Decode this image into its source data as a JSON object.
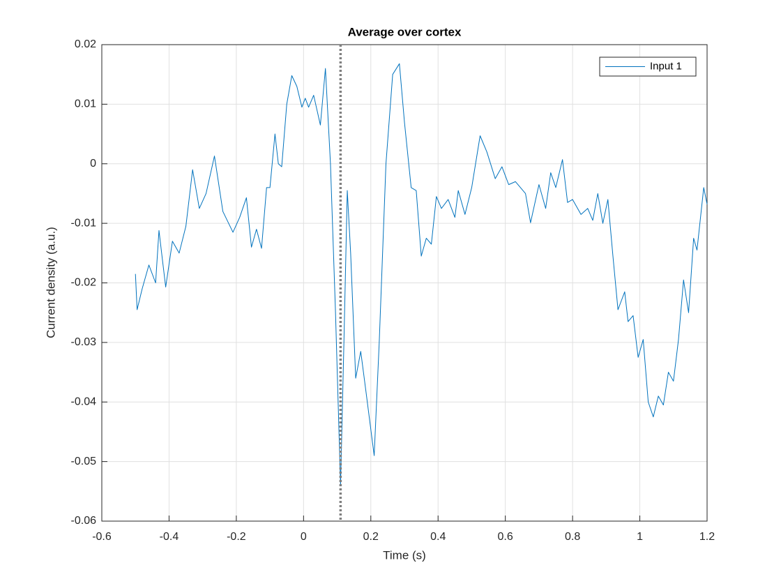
{
  "chart_data": {
    "type": "line",
    "title": "Average over cortex",
    "xlabel": "Time (s)",
    "ylabel": "Current density (a.u.)",
    "x": [
      -0.5,
      -0.495,
      -0.48,
      -0.46,
      -0.44,
      -0.43,
      -0.42,
      -0.41,
      -0.39,
      -0.37,
      -0.35,
      -0.33,
      -0.31,
      -0.29,
      -0.265,
      -0.24,
      -0.21,
      -0.19,
      -0.17,
      -0.155,
      -0.14,
      -0.125,
      -0.11,
      -0.1,
      -0.085,
      -0.075,
      -0.065,
      -0.05,
      -0.035,
      -0.02,
      -0.005,
      0.005,
      0.015,
      0.03,
      0.05,
      0.065,
      0.08,
      0.095,
      0.11,
      0.12,
      0.13,
      0.14,
      0.155,
      0.17,
      0.185,
      0.21,
      0.225,
      0.245,
      0.265,
      0.285,
      0.3,
      0.32,
      0.335,
      0.35,
      0.365,
      0.38,
      0.395,
      0.41,
      0.43,
      0.45,
      0.46,
      0.48,
      0.5,
      0.525,
      0.545,
      0.57,
      0.59,
      0.61,
      0.63,
      0.66,
      0.675,
      0.7,
      0.72,
      0.735,
      0.75,
      0.77,
      0.785,
      0.8,
      0.825,
      0.845,
      0.86,
      0.875,
      0.89,
      0.905,
      0.92,
      0.935,
      0.955,
      0.965,
      0.98,
      0.995,
      1.01,
      1.025,
      1.04,
      1.055,
      1.07,
      1.085,
      1.1,
      1.115,
      1.13,
      1.145,
      1.16,
      1.17,
      1.19,
      1.2
    ],
    "series": [
      {
        "name": "Input 1",
        "color": "#0072bd",
        "values": [
          -0.0185,
          -0.0245,
          -0.021,
          -0.017,
          -0.02,
          -0.0112,
          -0.016,
          -0.0207,
          -0.013,
          -0.015,
          -0.0105,
          -0.001,
          -0.0075,
          -0.005,
          0.0013,
          -0.008,
          -0.0115,
          -0.009,
          -0.0057,
          -0.014,
          -0.011,
          -0.0142,
          -0.004,
          -0.004,
          0.005,
          0.0,
          -0.0005,
          0.01,
          0.0148,
          0.013,
          0.0095,
          0.011,
          0.0095,
          0.0115,
          0.0065,
          0.016,
          0.0,
          -0.025,
          -0.054,
          -0.03,
          -0.0045,
          -0.015,
          -0.036,
          -0.0315,
          -0.038,
          -0.049,
          -0.03,
          0.0,
          0.015,
          0.0168,
          0.007,
          -0.004,
          -0.0045,
          -0.0155,
          -0.0125,
          -0.0135,
          -0.0055,
          -0.0075,
          -0.006,
          -0.009,
          -0.0045,
          -0.0085,
          -0.004,
          0.0047,
          0.002,
          -0.0025,
          -0.0005,
          -0.0035,
          -0.003,
          -0.005,
          -0.0099,
          -0.0035,
          -0.0075,
          -0.0015,
          -0.004,
          0.0007,
          -0.0065,
          -0.006,
          -0.0085,
          -0.0075,
          -0.0095,
          -0.005,
          -0.01,
          -0.006,
          -0.0155,
          -0.0245,
          -0.0215,
          -0.0265,
          -0.0255,
          -0.0325,
          -0.0295,
          -0.04,
          -0.0425,
          -0.039,
          -0.0405,
          -0.035,
          -0.0365,
          -0.0295,
          -0.0195,
          -0.025,
          -0.0125,
          -0.0145,
          -0.004,
          -0.0068
        ]
      }
    ],
    "vline_x": 0.11,
    "vline_color": "#7f7f7f",
    "xlim": [
      -0.6,
      1.2
    ],
    "xticks": [
      -0.6,
      -0.4,
      -0.2,
      0,
      0.2,
      0.4,
      0.6,
      0.8,
      1,
      1.2
    ],
    "ylim": [
      -0.06,
      0.02
    ],
    "yticks": [
      -0.06,
      -0.05,
      -0.04,
      -0.03,
      -0.02,
      -0.01,
      0,
      0.01,
      0.02
    ],
    "grid": true,
    "legend": "top-right"
  }
}
